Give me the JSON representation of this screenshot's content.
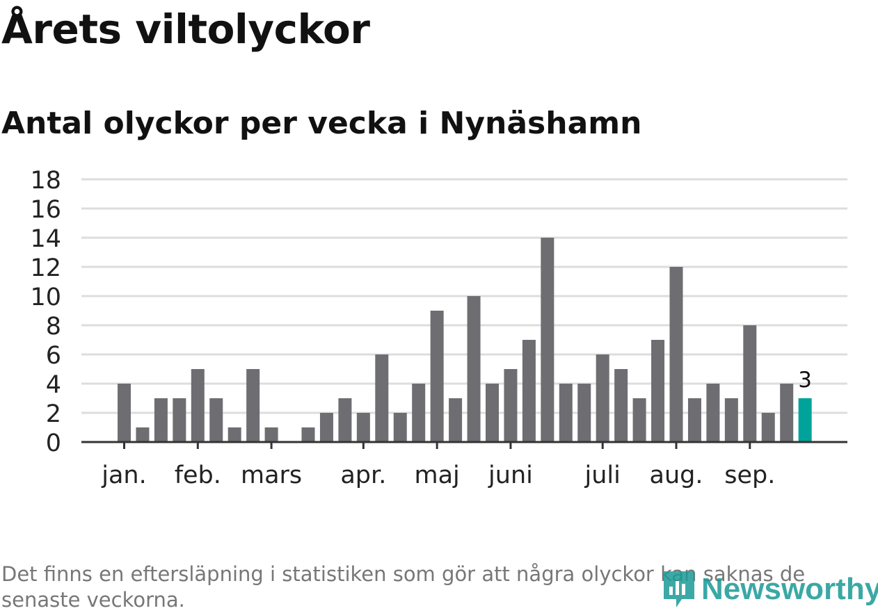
{
  "title": "Årets viltolyckor",
  "subtitle": "Antal olyckor per vecka i Nynäshamn",
  "footnote": "Det finns en eftersläpning i statistiken som gör att några olyckor kan saknas de senaste veckorna.",
  "logo_text": "Newsworthy",
  "colors": {
    "bar": "#6e6d72",
    "highlight": "#00a39a",
    "grid": "#dddddd",
    "axis": "#333333",
    "logo": "#1a9a96"
  },
  "chart_data": {
    "type": "bar",
    "title": "Årets viltolyckor",
    "subtitle": "Antal olyckor per vecka i Nynäshamn",
    "xlabel": "",
    "ylabel": "",
    "ylim": [
      0,
      18
    ],
    "yticks": [
      0,
      2,
      4,
      6,
      8,
      10,
      12,
      14,
      16,
      18
    ],
    "grid": true,
    "x_tick_labels": [
      {
        "label": "jan.",
        "week": 1
      },
      {
        "label": "feb.",
        "week": 5
      },
      {
        "label": "mars",
        "week": 9
      },
      {
        "label": "apr.",
        "week": 14
      },
      {
        "label": "maj",
        "week": 18
      },
      {
        "label": "juni",
        "week": 22
      },
      {
        "label": "juli",
        "week": 27
      },
      {
        "label": "aug.",
        "week": 31
      },
      {
        "label": "sep.",
        "week": 35
      }
    ],
    "categories": [
      1,
      2,
      3,
      4,
      5,
      6,
      7,
      8,
      9,
      10,
      11,
      12,
      13,
      14,
      15,
      16,
      17,
      18,
      19,
      20,
      21,
      22,
      23,
      24,
      25,
      26,
      27,
      28,
      29,
      30,
      31,
      32,
      33,
      34,
      35,
      36,
      37,
      38
    ],
    "values": [
      4,
      1,
      3,
      3,
      5,
      3,
      1,
      5,
      1,
      0,
      1,
      2,
      3,
      2,
      6,
      2,
      4,
      9,
      3,
      10,
      4,
      5,
      7,
      14,
      4,
      4,
      6,
      5,
      3,
      7,
      12,
      3,
      4,
      3,
      8,
      2,
      4,
      3
    ],
    "highlight_index": 37,
    "highlight_label": "3"
  }
}
